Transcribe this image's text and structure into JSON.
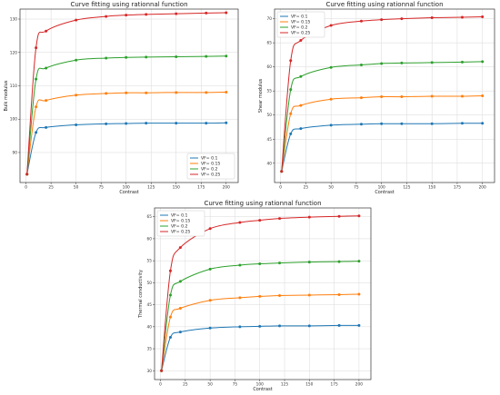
{
  "colors": {
    "VF_0_1": "#1f77b4",
    "VF_0_15": "#ff7f0e",
    "VF_0_2": "#2ca02c",
    "VF_0_25": "#d62728"
  },
  "chart_data": [
    {
      "type": "line",
      "title": "Curve fitting using rationnal function",
      "xlabel": "Contrast",
      "ylabel": "Bulk modulus",
      "xlim": [
        -6,
        212
      ],
      "ylim": [
        81,
        133
      ],
      "xticks": [
        0,
        25,
        50,
        75,
        100,
        125,
        150,
        175,
        200
      ],
      "yticks": [
        90,
        100,
        110,
        120,
        130
      ],
      "grid": true,
      "legend_position": "bottom-right",
      "x": [
        1,
        10,
        20,
        50,
        80,
        100,
        120,
        150,
        180,
        200
      ],
      "series": [
        {
          "name": "VF= 0.1",
          "color_key": "VF_0_1",
          "values": [
            83.5,
            96.0,
            97.5,
            98.3,
            98.6,
            98.7,
            98.8,
            98.8,
            98.8,
            98.9
          ]
        },
        {
          "name": "VF= 0.15",
          "color_key": "VF_0_15",
          "values": [
            83.5,
            103.7,
            105.6,
            107.2,
            107.7,
            107.9,
            107.9,
            108.0,
            108.0,
            108.1
          ]
        },
        {
          "name": "VF= 0.2",
          "color_key": "VF_0_2",
          "values": [
            83.5,
            112.0,
            115.3,
            117.7,
            118.3,
            118.5,
            118.6,
            118.7,
            118.8,
            118.9
          ]
        },
        {
          "name": "VF= 0.25",
          "color_key": "VF_0_25",
          "values": [
            83.5,
            121.4,
            126.4,
            129.7,
            130.8,
            131.2,
            131.4,
            131.6,
            131.8,
            131.9
          ]
        }
      ]
    },
    {
      "type": "line",
      "title": "Curve fitting using rationnal function",
      "xlabel": "Contrast",
      "ylabel": "Shear modulus",
      "xlim": [
        -6,
        212
      ],
      "ylim": [
        36,
        72
      ],
      "xticks": [
        0,
        25,
        50,
        75,
        100,
        125,
        150,
        175,
        200
      ],
      "yticks": [
        40,
        45,
        50,
        55,
        60,
        65,
        70
      ],
      "grid": true,
      "legend_position": "top-left",
      "x": [
        1,
        10,
        20,
        50,
        80,
        100,
        120,
        150,
        180,
        200
      ],
      "series": [
        {
          "name": "VF= 0.1",
          "color_key": "VF_0_1",
          "values": [
            38.3,
            46.1,
            47.2,
            47.9,
            48.1,
            48.2,
            48.2,
            48.2,
            48.3,
            48.3
          ]
        },
        {
          "name": "VF= 0.15",
          "color_key": "VF_0_15",
          "values": [
            38.3,
            50.3,
            52.0,
            53.3,
            53.6,
            53.8,
            53.8,
            53.9,
            53.9,
            54.0
          ]
        },
        {
          "name": "VF= 0.2",
          "color_key": "VF_0_2",
          "values": [
            38.3,
            55.3,
            58.0,
            59.9,
            60.4,
            60.7,
            60.8,
            60.9,
            61.0,
            61.1
          ]
        },
        {
          "name": "VF= 0.25",
          "color_key": "VF_0_25",
          "values": [
            38.3,
            61.3,
            65.5,
            68.6,
            69.5,
            69.8,
            70.0,
            70.2,
            70.3,
            70.4
          ]
        }
      ]
    },
    {
      "type": "line",
      "title": "Curve fitting using rationnal function",
      "xlabel": "Contrast",
      "ylabel": "Thermal conductivity",
      "xlim": [
        -6,
        212
      ],
      "ylim": [
        28,
        67
      ],
      "xticks": [
        0,
        25,
        50,
        75,
        100,
        125,
        150,
        175,
        200
      ],
      "yticks": [
        30,
        35,
        40,
        45,
        50,
        55,
        60,
        65
      ],
      "grid": true,
      "legend_position": "top-left",
      "x": [
        1,
        10,
        20,
        50,
        80,
        100,
        120,
        150,
        180,
        200
      ],
      "series": [
        {
          "name": "VF= 0.1",
          "color_key": "VF_0_1",
          "values": [
            30.0,
            37.6,
            38.8,
            39.7,
            40.0,
            40.1,
            40.2,
            40.2,
            40.3,
            40.3
          ]
        },
        {
          "name": "VF= 0.15",
          "color_key": "VF_0_15",
          "values": [
            30.0,
            42.2,
            44.2,
            46.0,
            46.6,
            46.9,
            47.1,
            47.2,
            47.3,
            47.4
          ]
        },
        {
          "name": "VF= 0.2",
          "color_key": "VF_0_2",
          "values": [
            30.0,
            47.2,
            50.3,
            53.1,
            54.0,
            54.3,
            54.5,
            54.7,
            54.8,
            54.9
          ]
        },
        {
          "name": "VF= 0.25",
          "color_key": "VF_0_25",
          "values": [
            30.0,
            52.7,
            58.0,
            62.3,
            63.7,
            64.2,
            64.6,
            64.9,
            65.1,
            65.2
          ]
        }
      ]
    }
  ]
}
